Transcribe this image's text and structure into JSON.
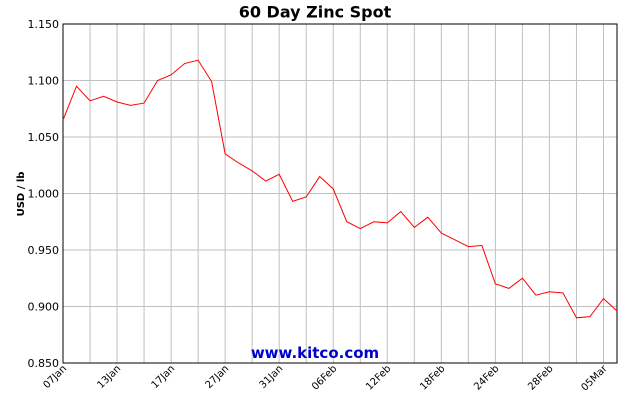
{
  "chart_data": {
    "type": "line",
    "title": "60 Day Zinc Spot",
    "y_label": "USD / lb",
    "watermark": "www.kitco.com",
    "categories": [
      "07Jan",
      null,
      null,
      null,
      "13Jan",
      null,
      null,
      null,
      "17Jan",
      null,
      null,
      null,
      "27Jan",
      null,
      null,
      null,
      "31Jan",
      null,
      null,
      null,
      "06Feb",
      null,
      null,
      null,
      "12Feb",
      null,
      null,
      null,
      "18Feb",
      null,
      null,
      null,
      "24Feb",
      null,
      null,
      null,
      "28Feb",
      null,
      null,
      null,
      "05Mar",
      null
    ],
    "series": [
      {
        "name": "Zinc",
        "color": "#ff0000",
        "values": [
          1.065,
          1.095,
          1.082,
          1.086,
          1.081,
          1.078,
          1.08,
          1.1,
          1.105,
          1.115,
          1.118,
          1.099,
          1.035,
          1.027,
          1.02,
          1.011,
          1.017,
          0.993,
          0.997,
          1.015,
          1.004,
          0.975,
          0.969,
          0.975,
          0.974,
          0.984,
          0.97,
          0.979,
          0.965,
          0.959,
          0.953,
          0.954,
          0.92,
          0.916,
          0.925,
          0.91,
          0.913,
          0.912,
          0.89,
          0.891,
          0.907,
          0.896
        ]
      }
    ],
    "ylim": [
      0.85,
      1.15
    ],
    "yticks": [
      {
        "value": 0.85,
        "label": "0.850"
      },
      {
        "value": 0.9,
        "label": "0.900"
      },
      {
        "value": 0.95,
        "label": "0.950"
      },
      {
        "value": 1.0,
        "label": "1.000"
      },
      {
        "value": 1.05,
        "label": "1.050"
      },
      {
        "value": 1.1,
        "label": "1.100"
      },
      {
        "value": 1.15,
        "label": "1.150"
      }
    ],
    "grid": true
  }
}
